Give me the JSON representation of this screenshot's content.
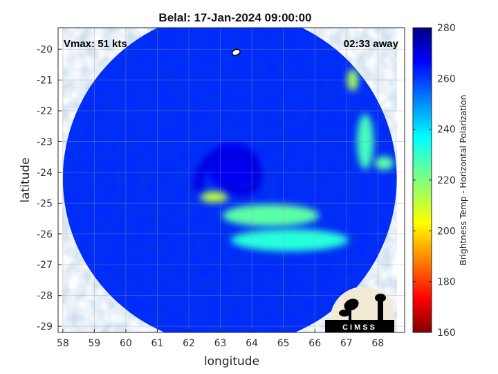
{
  "chart_data": {
    "type": "heatmap",
    "title": "Belal: 17-Jan-2024 09:00:00",
    "xlabel": "longitude",
    "ylabel": "latitude",
    "xlim": [
      57.85,
      68.85
    ],
    "ylim": [
      -29.2,
      -19.3
    ],
    "x_ticks": [
      "58",
      "59",
      "60",
      "61",
      "62",
      "63",
      "64",
      "65",
      "66",
      "67",
      "68"
    ],
    "y_ticks": [
      "-20",
      "-21",
      "-22",
      "-23",
      "-24",
      "-25",
      "-26",
      "-27",
      "-28",
      "-29"
    ],
    "grid": true,
    "annotations": {
      "vmax": "Vmax: 51 kts",
      "offset": "02:33 away"
    },
    "storm_center": {
      "lon": 63.5,
      "lat": -20.1
    },
    "swath": {
      "center_lon": 63.3,
      "center_lat": -24.2,
      "radius_deg": 5.3
    },
    "colorbar": {
      "label": "Brightness Temp - Horizontal Polarization",
      "range": [
        160,
        280
      ],
      "ticks": [
        "160",
        "180",
        "200",
        "220",
        "240",
        "260",
        "280"
      ],
      "colormap": "jet"
    },
    "background_value": 262,
    "features": [
      {
        "name": "eye-region",
        "lon": 63.4,
        "lat": -23.8,
        "value": 268
      },
      {
        "name": "inner-eyewall-arc",
        "lon": 62.8,
        "lat": -24.8,
        "value": 212
      },
      {
        "name": "rainband-main",
        "lon": 64.6,
        "lat": -25.4,
        "value": 225
      },
      {
        "name": "rainband-south",
        "lon": 65.2,
        "lat": -26.2,
        "value": 232
      },
      {
        "name": "rainband-east-1",
        "lon": 67.2,
        "lat": -21.0,
        "value": 215
      },
      {
        "name": "rainband-east-2",
        "lon": 67.6,
        "lat": -23.0,
        "value": 228
      },
      {
        "name": "rainband-east-3",
        "lon": 68.2,
        "lat": -23.7,
        "value": 225
      }
    ],
    "logo": {
      "text": "CIMSS"
    }
  }
}
